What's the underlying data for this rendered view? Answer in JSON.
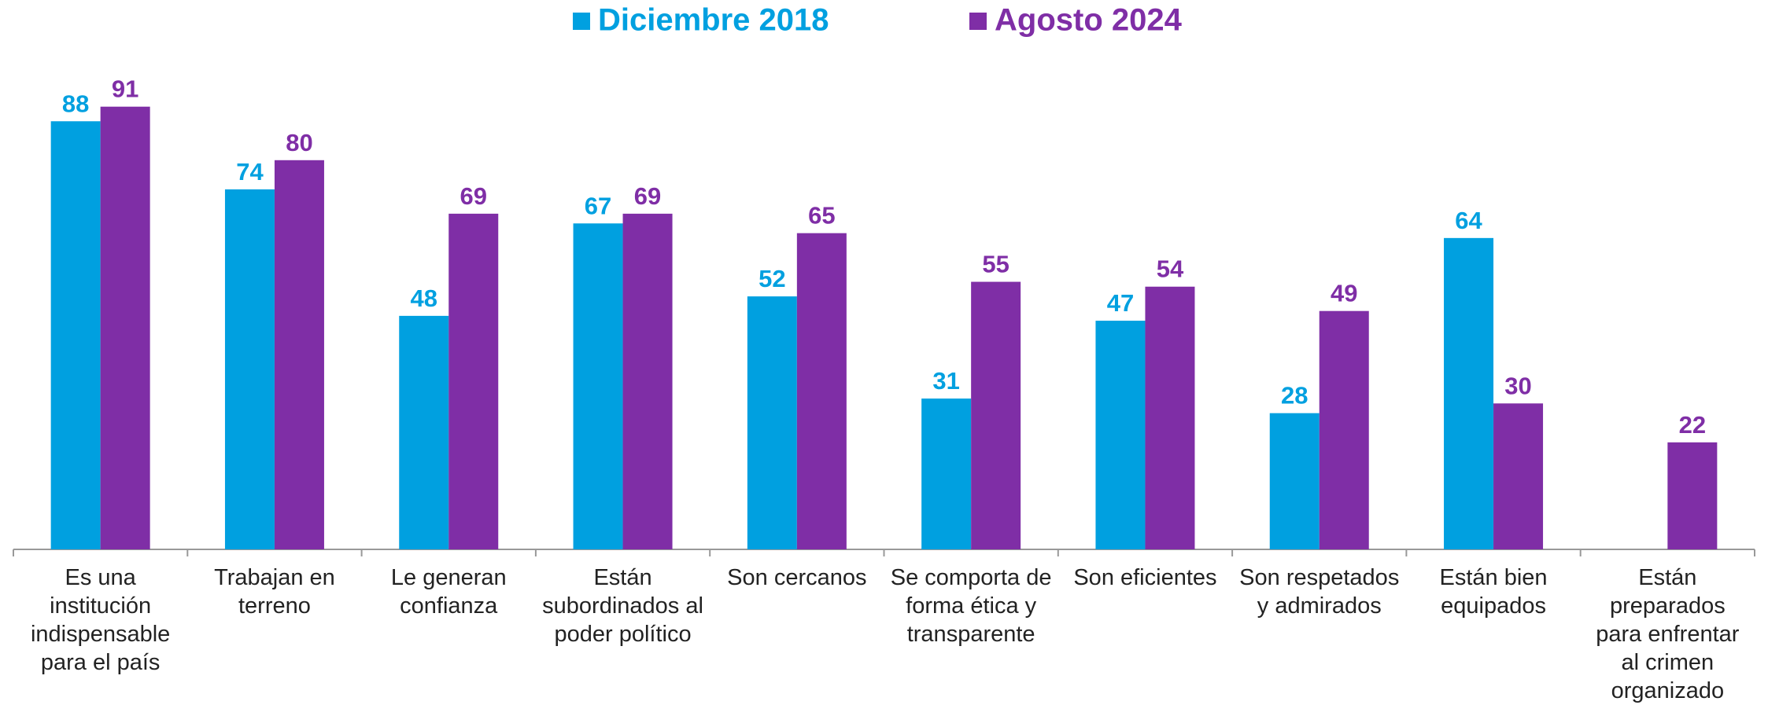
{
  "chart_data": {
    "type": "bar",
    "categories": [
      "Es una institución indispensable para el país",
      "Trabajan en terreno",
      "Le generan confianza",
      "Están subordinados al poder político",
      "Son cercanos",
      "Se comporta de forma ética y transparente",
      "Son eficientes",
      "Son respetados y admirados",
      "Están bien equipados",
      "Están preparados para enfrentar al crimen organizado"
    ],
    "series": [
      {
        "name": "Diciembre 2018",
        "color": "#00A0E0",
        "values": [
          88,
          74,
          48,
          67,
          52,
          31,
          47,
          28,
          64,
          null
        ]
      },
      {
        "name": "Agosto 2024",
        "color": "#7F2EA6",
        "values": [
          91,
          80,
          69,
          69,
          65,
          55,
          54,
          49,
          30,
          22
        ]
      }
    ],
    "ylim": [
      0,
      100
    ],
    "legend": "top"
  }
}
